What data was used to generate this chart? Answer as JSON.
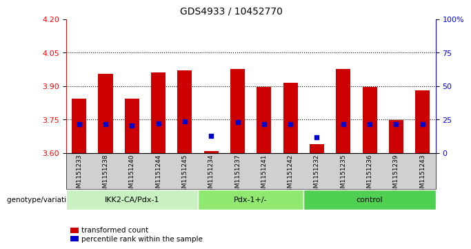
{
  "title": "GDS4933 / 10452770",
  "samples": [
    "GSM1151233",
    "GSM1151238",
    "GSM1151240",
    "GSM1151244",
    "GSM1151245",
    "GSM1151234",
    "GSM1151237",
    "GSM1151241",
    "GSM1151242",
    "GSM1151232",
    "GSM1151235",
    "GSM1151236",
    "GSM1151239",
    "GSM1151243"
  ],
  "transformed_count": [
    3.845,
    3.955,
    3.845,
    3.96,
    3.97,
    3.61,
    3.975,
    3.895,
    3.915,
    3.64,
    3.975,
    3.895,
    3.748,
    3.88
  ],
  "percentile_rank": [
    3.728,
    3.728,
    3.724,
    3.733,
    3.742,
    3.678,
    3.74,
    3.728,
    3.728,
    3.672,
    3.73,
    3.728,
    3.73,
    3.728
  ],
  "bar_bottom": 3.6,
  "ylim_left": [
    3.6,
    4.2
  ],
  "ylim_right": [
    0,
    100
  ],
  "yticks_left": [
    3.6,
    3.75,
    3.9,
    4.05,
    4.2
  ],
  "yticks_right": [
    0,
    25,
    50,
    75,
    100
  ],
  "ytick_labels_right": [
    "0",
    "25",
    "50",
    "75",
    "100%"
  ],
  "hlines": [
    3.75,
    3.9,
    4.05
  ],
  "groups": [
    {
      "label": "IKK2-CA/Pdx-1",
      "start": 0,
      "end": 5,
      "color": "#c8f0c0"
    },
    {
      "label": "Pdx-1+/-",
      "start": 5,
      "end": 9,
      "color": "#90e870"
    },
    {
      "label": "control",
      "start": 9,
      "end": 14,
      "color": "#50d050"
    }
  ],
  "bar_color": "#cc0000",
  "percentile_color": "#0000cc",
  "bar_width": 0.55,
  "xlabel_group": "genotype/variation",
  "legend_items": [
    {
      "label": "transformed count",
      "color": "#cc0000"
    },
    {
      "label": "percentile rank within the sample",
      "color": "#0000cc"
    }
  ]
}
